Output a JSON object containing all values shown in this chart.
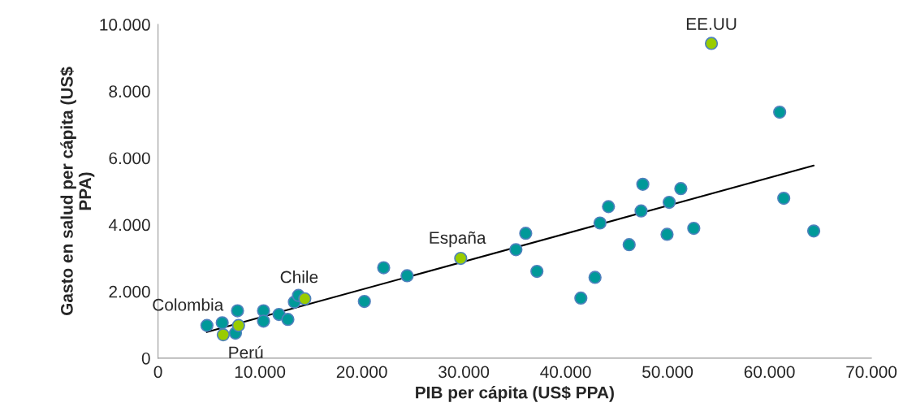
{
  "chart_data": {
    "type": "scatter",
    "xlabel": "PIB per cápita (US$ PPA)",
    "ylabel": "Gasto en salud per cápita (US$\nPPA)",
    "series": [
      {
        "marker": "circle",
        "x": [
          4800,
          6300,
          7600,
          7800,
          10350,
          10350,
          11870,
          12740,
          13380,
          13780,
          20250,
          22140,
          24440,
          35120,
          36080,
          37180,
          41490,
          42880,
          43370,
          44200,
          46230,
          47400,
          47570,
          50160,
          49950,
          51300,
          52570,
          61400,
          64340,
          61000,
          6400,
          7900,
          14400,
          29700,
          54300
        ],
        "values": [
          980,
          1060,
          750,
          1420,
          1420,
          1110,
          1310,
          1160,
          1680,
          1880,
          1700,
          2710,
          2470,
          3250,
          3740,
          2600,
          1800,
          2420,
          4050,
          4540,
          3400,
          4410,
          5210,
          4670,
          3710,
          5080,
          3890,
          4790,
          3810,
          7370,
          700,
          980,
          1780,
          2990,
          9430
        ],
        "colors": [
          "#009999",
          "#009999",
          "#009999",
          "#009999",
          "#009999",
          "#009999",
          "#009999",
          "#009999",
          "#009999",
          "#009999",
          "#009999",
          "#009999",
          "#009999",
          "#009999",
          "#009999",
          "#009999",
          "#009999",
          "#009999",
          "#009999",
          "#009999",
          "#009999",
          "#009999",
          "#009999",
          "#009999",
          "#009999",
          "#009999",
          "#009999",
          "#009999",
          "#009999",
          "#009999",
          "#99cc00",
          "#99cc00",
          "#99cc00",
          "#99cc00",
          "#99cc00"
        ]
      },
      {
        "type": "line",
        "x": [
          4780,
          64340
        ],
        "values": [
          780,
          5770
        ],
        "color": "#000000"
      }
    ],
    "annotations": [
      {
        "text": "Colombia",
        "x": 7900,
        "y": 980
      },
      {
        "text": "Perú",
        "x": 6400,
        "y": 700
      },
      {
        "text": "Chile",
        "x": 14400,
        "y": 1780
      },
      {
        "text": "España",
        "x": 29700,
        "y": 2990
      },
      {
        "text": "EE.UU",
        "x": 54300,
        "y": 9430
      }
    ],
    "xlim": [
      0,
      70000
    ],
    "xticks": [
      0,
      {
        "value": 10000,
        "label": "10.000"
      },
      {
        "value": 20000,
        "label": "20.000"
      },
      {
        "value": 30000,
        "label": "30.000"
      },
      {
        "value": 40000,
        "label": "40.000"
      },
      {
        "value": 50000,
        "label": "50.000"
      },
      {
        "value": 60000,
        "label": "60.000"
      },
      {
        "value": 70000,
        "label": "70.000"
      }
    ],
    "ylim": [
      0,
      10000
    ],
    "yticks": [
      0,
      {
        "value": 2000,
        "label": "2.000"
      },
      {
        "value": 4000,
        "label": "4.000"
      },
      {
        "value": 6000,
        "label": "6.000"
      },
      {
        "value": 8000,
        "label": "8.000"
      },
      {
        "value": 10000,
        "label": "10.000"
      }
    ],
    "grid": false,
    "legend": false
  }
}
